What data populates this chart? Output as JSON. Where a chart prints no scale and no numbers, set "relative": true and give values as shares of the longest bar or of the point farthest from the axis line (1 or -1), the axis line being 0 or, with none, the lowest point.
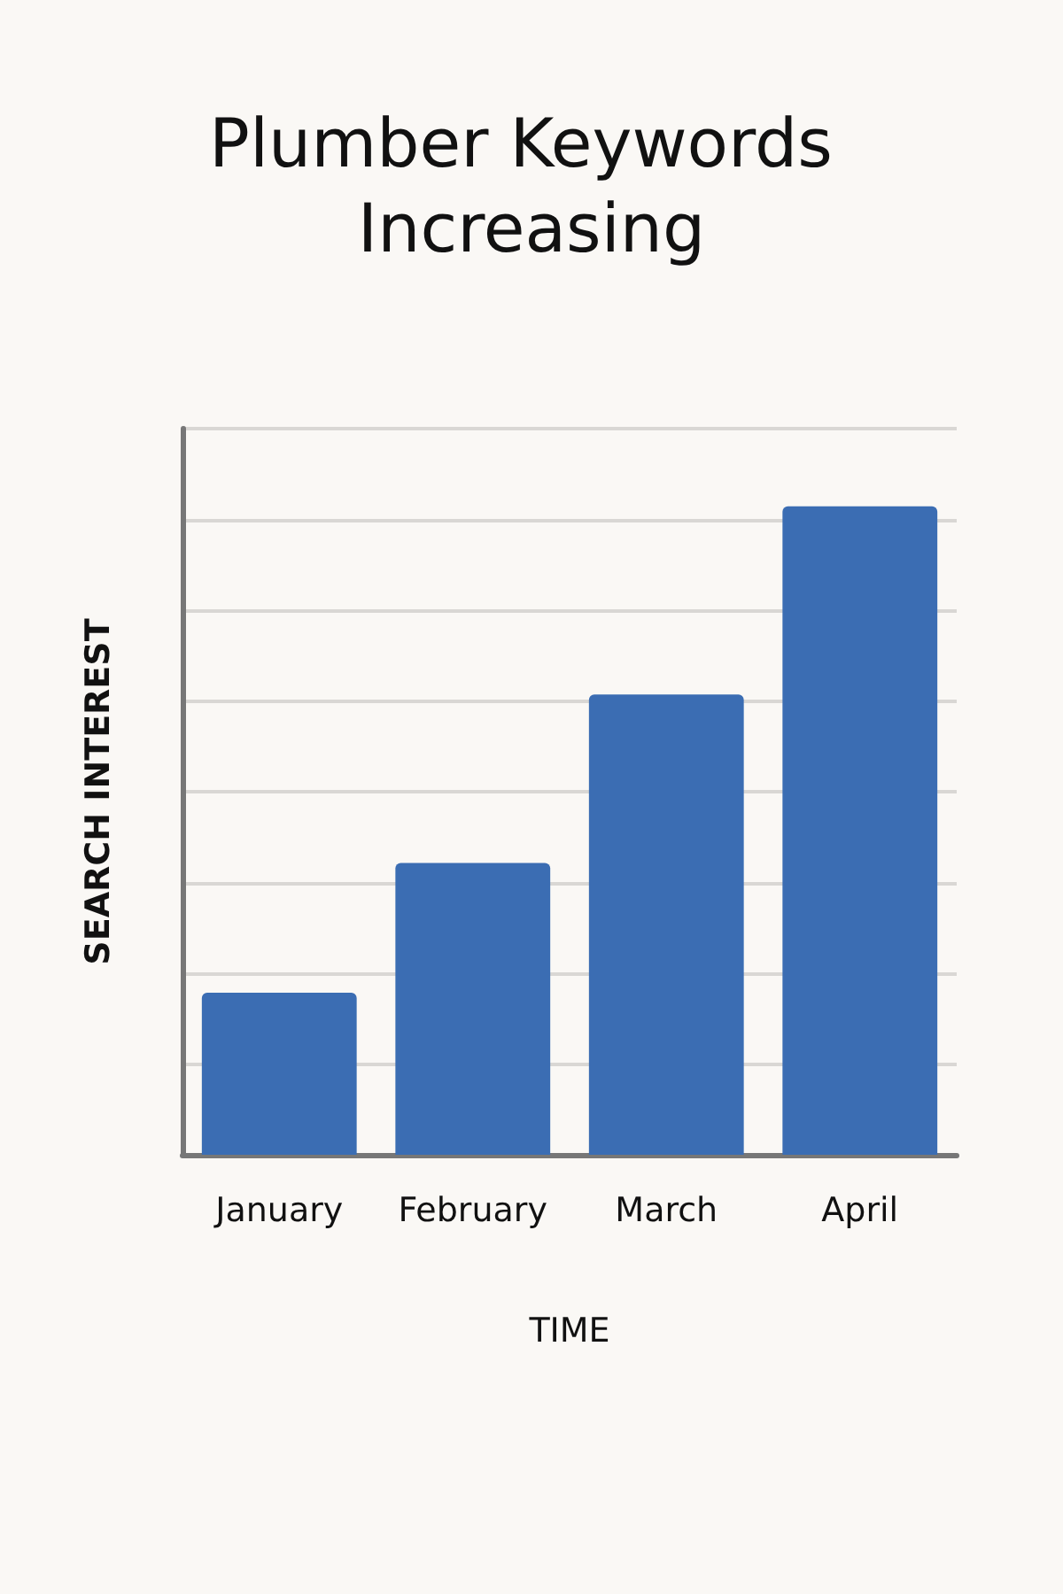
{
  "chart_data": {
    "type": "bar",
    "title": "Plumber Keywords Increasing",
    "xlabel": "TIME",
    "ylabel": "SEARCH INTEREST",
    "categories": [
      "January",
      "February",
      "March",
      "April"
    ],
    "values": [
      0.25,
      0.45,
      0.71,
      1
    ],
    "color": "#3b6db3",
    "relative": true,
    "grid": "y"
  }
}
